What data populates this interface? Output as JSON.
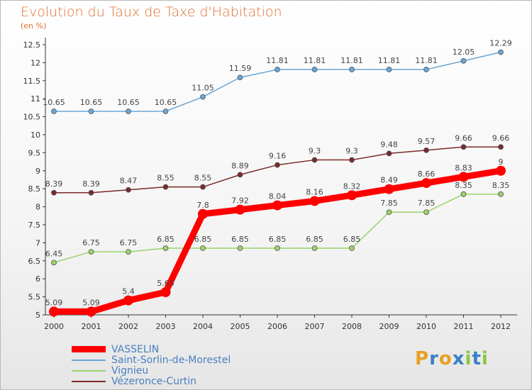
{
  "header": {
    "title": "Evolution du Taux de Taxe d'Habitation",
    "subtitle": "(en %)"
  },
  "logo": {
    "text": "Proxiti",
    "letters": [
      "P",
      "r",
      "o",
      "x",
      "i",
      "t",
      "i"
    ],
    "colors": [
      "#e8a020",
      "#3a7fc8",
      "#e8a020",
      "#3a7fc8",
      "#8cc63f",
      "#3a7fc8",
      "#8cc63f"
    ]
  },
  "chart_data": {
    "type": "line",
    "title": "Evolution du Taux de Taxe d'Habitation",
    "ylabel": "(en %)",
    "xlabel": "",
    "ylim": [
      5,
      12.5
    ],
    "yticks": [
      "5",
      "5.5",
      "6",
      "6.5",
      "7",
      "7.5",
      "8",
      "8.5",
      "9",
      "9.5",
      "10",
      "10.5",
      "11",
      "11.5",
      "12",
      "12.5"
    ],
    "ytick_values": [
      5,
      5.5,
      6,
      6.5,
      7,
      7.5,
      8,
      8.5,
      9,
      9.5,
      10,
      10.5,
      11,
      11.5,
      12,
      12.5
    ],
    "x": [
      "2000",
      "2001",
      "2002",
      "2003",
      "2004",
      "2005",
      "2006",
      "2007",
      "2008",
      "2009",
      "2010",
      "2011",
      "2012"
    ],
    "grid": false,
    "legend_position": "bottom",
    "series": [
      {
        "name": "VASSELIN",
        "color": "#ff0000",
        "values": [
          5.09,
          5.09,
          5.4,
          5.63,
          7.8,
          7.92,
          8.04,
          8.16,
          8.32,
          8.49,
          8.66,
          8.83,
          9
        ],
        "labels": [
          "5.09",
          "5.09",
          "5.4",
          "5.63",
          "7.8",
          "7.92",
          "8.04",
          "8.16",
          "8.32",
          "8.49",
          "8.66",
          "8.83",
          "9"
        ]
      },
      {
        "name": "Saint-Sorlin-de-Morestel",
        "color": "#6aa6d6",
        "values": [
          10.65,
          10.65,
          10.65,
          10.65,
          11.05,
          11.59,
          11.81,
          11.81,
          11.81,
          11.81,
          11.81,
          12.05,
          12.29
        ],
        "labels": [
          "10.65",
          "10.65",
          "10.65",
          "10.65",
          "11.05",
          "11.59",
          "11.81",
          "11.81",
          "11.81",
          "11.81",
          "11.81",
          "12.05",
          "12.29"
        ]
      },
      {
        "name": "Vignieu",
        "color": "#99d36a",
        "values": [
          6.45,
          6.75,
          6.75,
          6.85,
          6.85,
          6.85,
          6.85,
          6.85,
          6.85,
          7.85,
          7.85,
          8.35,
          8.35
        ],
        "labels": [
          "6.45",
          "6.75",
          "6.75",
          "6.85",
          "6.85",
          "6.85",
          "6.85",
          "6.85",
          "6.85",
          "7.85",
          "7.85",
          "8.35",
          "8.35"
        ]
      },
      {
        "name": "Vézeronce-Curtin",
        "color": "#7a2a2a",
        "values": [
          8.39,
          8.39,
          8.47,
          8.55,
          8.55,
          8.89,
          9.16,
          9.3,
          9.3,
          9.48,
          9.57,
          9.66,
          9.66
        ],
        "labels": [
          "8.39",
          "8.39",
          "8.47",
          "8.55",
          "8.55",
          "8.89",
          "9.16",
          "9.3",
          "9.3",
          "9.48",
          "9.57",
          "9.66",
          "9.66"
        ]
      }
    ]
  }
}
